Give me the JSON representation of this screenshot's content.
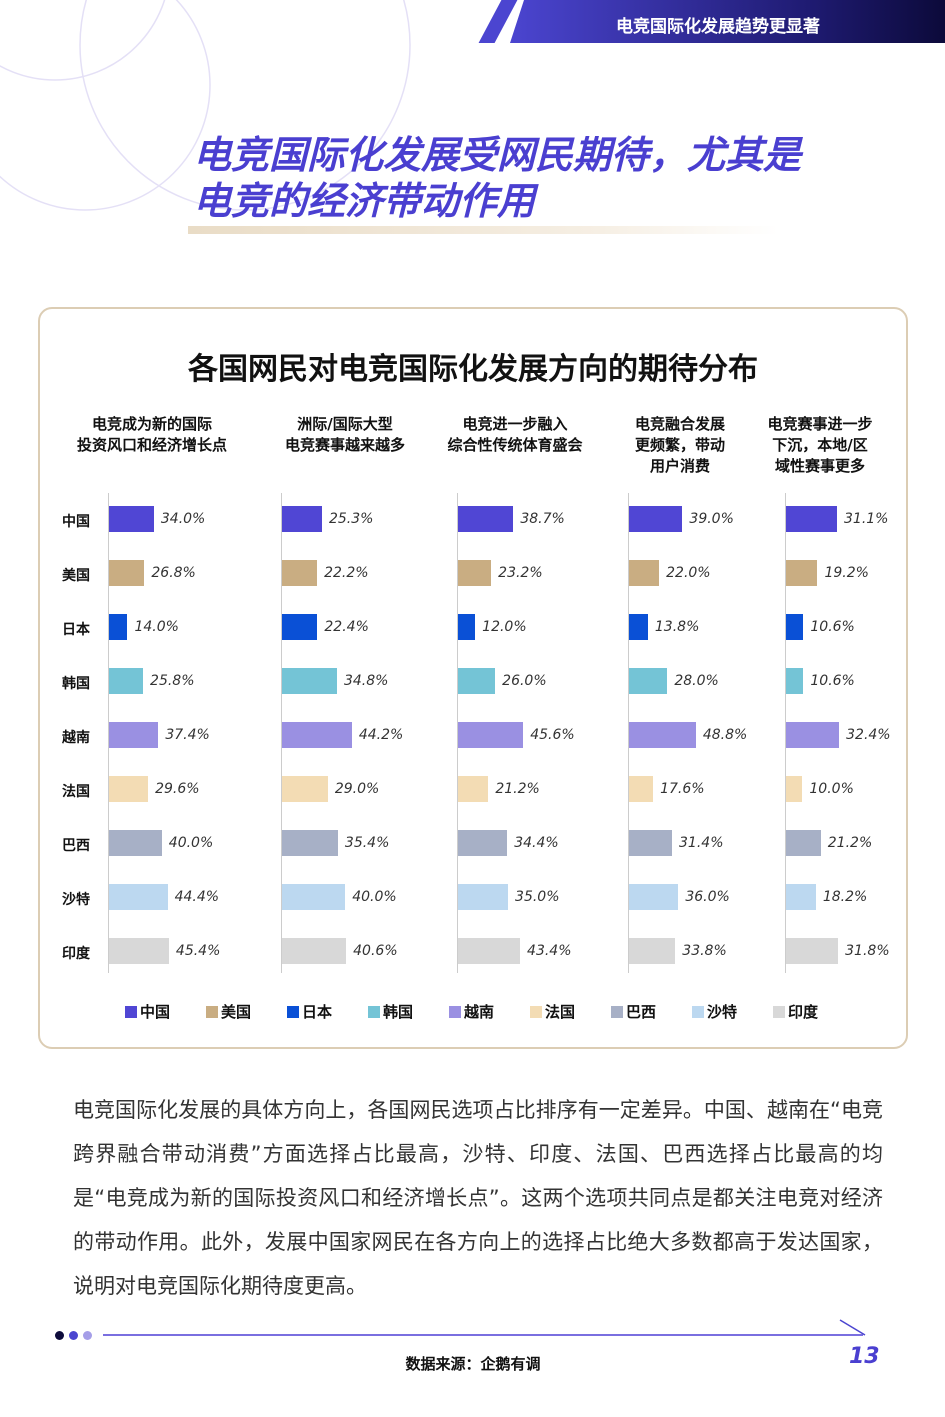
{
  "header": {
    "section": "电竞国际化发展趋势更显著"
  },
  "page_title": [
    "电竞国际化发展受网民期待，尤其是",
    "电竞的经济带动作用"
  ],
  "chart_data": {
    "type": "bar",
    "title": "各国网民对电竞国际化发展方向的期待分布",
    "categories": [
      "中国",
      "美国",
      "日本",
      "韩国",
      "越南",
      "法国",
      "巴西",
      "沙特",
      "印度"
    ],
    "colors": [
      "#5046d4",
      "#c9ad82",
      "#0a50d6",
      "#74c4d6",
      "#9a90e2",
      "#f3dcb4",
      "#a7b0c6",
      "#bcd8f0",
      "#d8d8d8"
    ],
    "unit": "%",
    "panels": [
      {
        "name": "电竞成为新的国际投资风口和经济增长点",
        "label_lines": [
          "电竞成为新的国际",
          "投资风口和经济增长点"
        ],
        "values": [
          34.0,
          26.8,
          14.0,
          25.8,
          37.4,
          29.6,
          40.0,
          44.4,
          45.4
        ]
      },
      {
        "name": "洲际/国际大型电竞赛事越来越多",
        "label_lines": [
          "洲际/国际大型",
          "电竞赛事越来越多"
        ],
        "values": [
          25.3,
          22.2,
          22.4,
          34.8,
          44.2,
          29.0,
          35.4,
          40.0,
          40.6
        ]
      },
      {
        "name": "电竞进一步融入综合性传统体育盛会",
        "label_lines": [
          "电竞进一步融入",
          "综合性传统体育盛会"
        ],
        "values": [
          38.7,
          23.2,
          12.0,
          26.0,
          45.6,
          21.2,
          34.4,
          35.0,
          43.4
        ]
      },
      {
        "name": "电竞融合发展更频繁，带动用户消费",
        "label_lines": [
          "电竞融合发展",
          "更频繁，带动",
          "用户消费"
        ],
        "values": [
          39.0,
          22.0,
          13.8,
          28.0,
          48.8,
          17.6,
          31.4,
          36.0,
          33.8
        ]
      },
      {
        "name": "电竞赛事进一步下沉，本地/区域性赛事更多",
        "label_lines": [
          "电竞赛事进一步",
          "下沉，本地/区",
          "域性赛事更多"
        ],
        "values": [
          31.1,
          19.2,
          10.6,
          10.6,
          32.4,
          10.0,
          21.2,
          18.2,
          31.8
        ]
      }
    ],
    "legend": [
      "中国",
      "美国",
      "日本",
      "韩国",
      "越南",
      "法国",
      "巴西",
      "沙特",
      "印度"
    ],
    "legend_placement": "bottom"
  },
  "paragraph": "电竞国际化发展的具体方向上，各国网民选项占比排序有一定差异。中国、越南在“电竞跨界融合带动消费”方面选择占比最高，沙特、印度、法国、巴西选择占比最高的均是“电竞成为新的国际投资风口和经济增长点”。这两个选项共同点是都关注电竞对经济的带动作用。此外，发展中国家网民在各方向上的选择占比绝大多数都高于发达国家，说明对电竞国际化期待度更高。",
  "footer": {
    "source": "数据来源：企鹅有调",
    "page": "13"
  },
  "accent": "#4a3fd0"
}
